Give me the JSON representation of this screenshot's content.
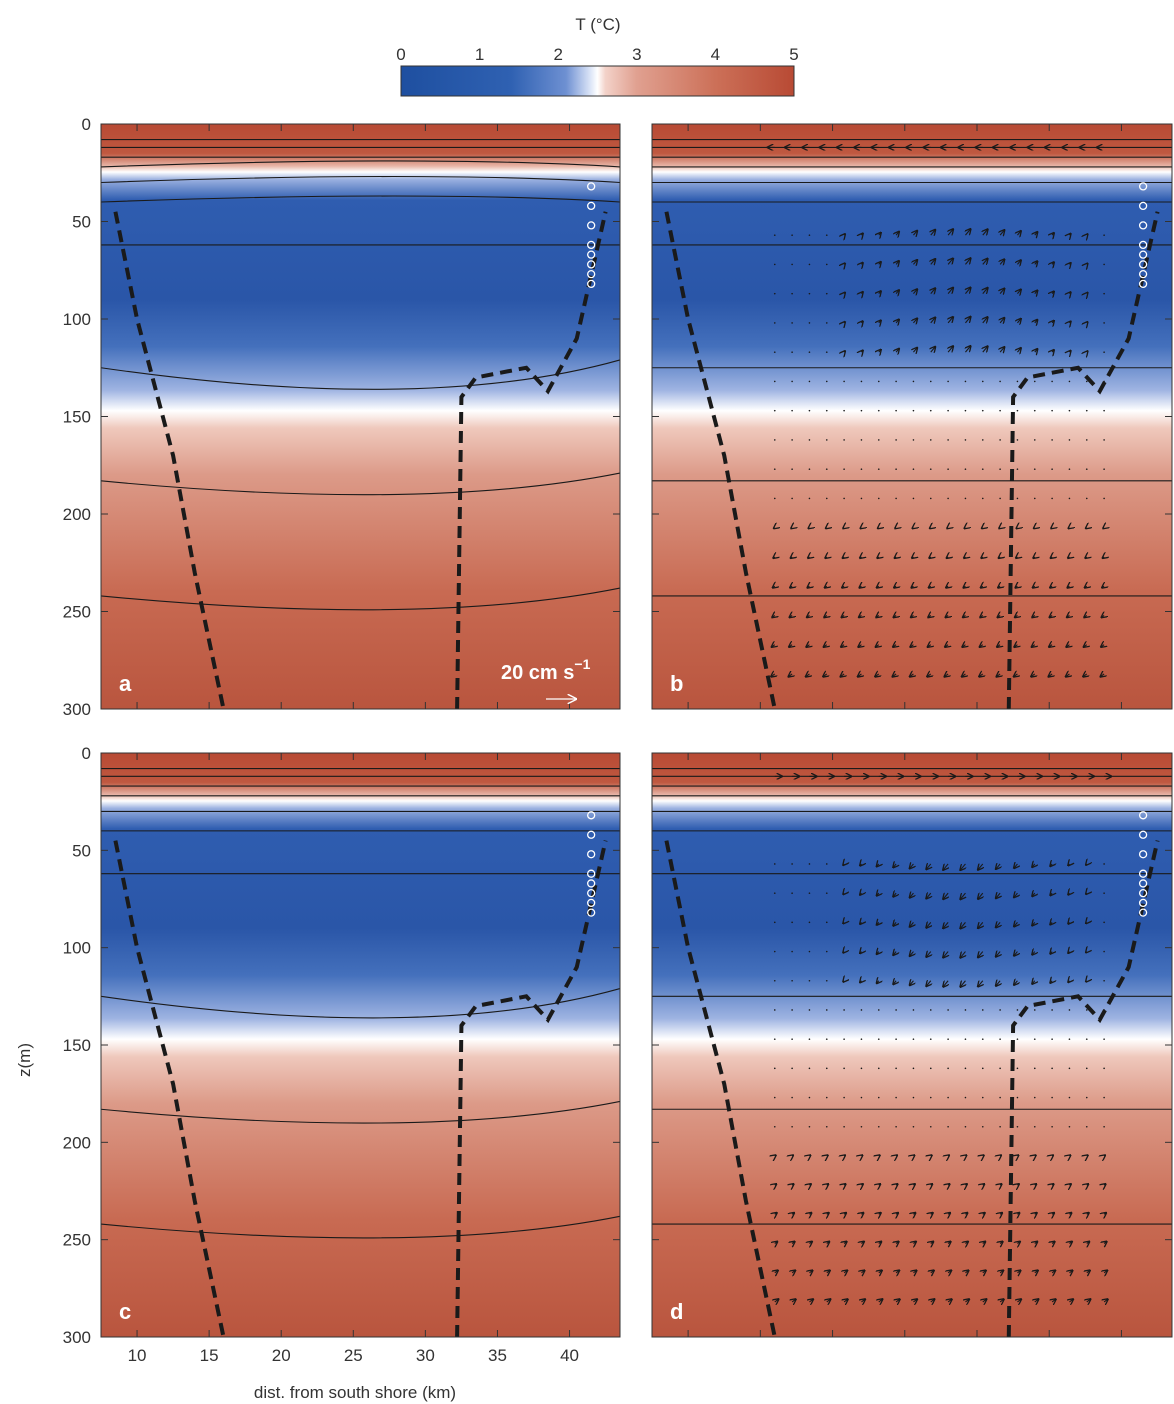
{
  "colorbar": {
    "title": "T (°C)",
    "ticks": [
      "0",
      "1",
      "2",
      "3",
      "4",
      "5"
    ],
    "range": [
      0,
      5
    ]
  },
  "axes": {
    "ylabel": "z(m)",
    "xlabel": "dist. from south shore (km)",
    "y_ticks": [
      "0",
      "50",
      "100",
      "150",
      "200",
      "250",
      "300"
    ],
    "x_ticks": [
      "10",
      "15",
      "20",
      "25",
      "30",
      "35",
      "40"
    ]
  },
  "velocity_scale_label": "20 cm s",
  "velocity_scale_exponent": "−1",
  "colors": {
    "cold": "#1e4fa0",
    "mid": "#ffffff",
    "warm": "#b84a34",
    "contour": "#1a1a1a",
    "boundary": "#1a1a1a"
  },
  "chart_data": [
    {
      "panel": "a",
      "type": "heatmap",
      "variable": "temperature (°C)",
      "xlim": [
        7.5,
        43.5
      ],
      "ylim": [
        300,
        0
      ],
      "layers_depth_m": {
        "warm_surface_to": 25,
        "cold_core_to": 148,
        "deep_warm_from": 155
      },
      "vectors": "none",
      "observation_column_km": 41.5,
      "boundary_left": [
        [
          8.5,
          45
        ],
        [
          10,
          100
        ],
        [
          12.5,
          170
        ],
        [
          14,
          230
        ],
        [
          16,
          300
        ]
      ],
      "boundary_right": [
        [
          32.2,
          300
        ],
        [
          32.5,
          140
        ],
        [
          33.5,
          130
        ],
        [
          37,
          125
        ],
        [
          38.5,
          137
        ],
        [
          40.5,
          110
        ],
        [
          42.5,
          45
        ]
      ]
    },
    {
      "panel": "b",
      "type": "heatmap",
      "variable": "temperature (°C)",
      "xlim": [
        7.5,
        43.5
      ],
      "ylim": [
        300,
        0
      ],
      "layers_depth_m": {
        "warm_surface_to": 25,
        "cold_core_to": 148,
        "deep_warm_from": 155
      },
      "vectors": "surface westward, mid-depth northeast, deep southwest",
      "observation_column_km": 41.5,
      "boundary_left": [
        [
          8.5,
          45
        ],
        [
          10,
          100
        ],
        [
          12.5,
          170
        ],
        [
          14,
          230
        ],
        [
          16,
          300
        ]
      ],
      "boundary_right": [
        [
          32.2,
          300
        ],
        [
          32.5,
          140
        ],
        [
          33.5,
          130
        ],
        [
          37,
          125
        ],
        [
          38.5,
          137
        ],
        [
          40.5,
          110
        ],
        [
          42.5,
          45
        ]
      ]
    },
    {
      "panel": "c",
      "type": "heatmap",
      "variable": "temperature (°C)",
      "xlim": [
        7.5,
        43.5
      ],
      "ylim": [
        300,
        0
      ],
      "layers_depth_m": {
        "warm_surface_to": 25,
        "cold_core_to": 148,
        "deep_warm_from": 155
      },
      "vectors": "none",
      "observation_column_km": 41.5,
      "boundary_left": [
        [
          8.5,
          45
        ],
        [
          10,
          100
        ],
        [
          12.5,
          170
        ],
        [
          14,
          230
        ],
        [
          16,
          300
        ]
      ],
      "boundary_right": [
        [
          32.2,
          300
        ],
        [
          32.5,
          140
        ],
        [
          33.5,
          130
        ],
        [
          37,
          125
        ],
        [
          38.5,
          137
        ],
        [
          40.5,
          110
        ],
        [
          42.5,
          45
        ]
      ]
    },
    {
      "panel": "d",
      "type": "heatmap",
      "variable": "temperature (°C)",
      "xlim": [
        7.5,
        43.5
      ],
      "ylim": [
        300,
        0
      ],
      "layers_depth_m": {
        "warm_surface_to": 25,
        "cold_core_to": 148,
        "deep_warm_from": 155
      },
      "vectors": "surface eastward, mid-depth southwest, deep southeast",
      "observation_column_km": 41.5,
      "boundary_left": [
        [
          8.5,
          45
        ],
        [
          10,
          100
        ],
        [
          12.5,
          170
        ],
        [
          14,
          230
        ],
        [
          16,
          300
        ]
      ],
      "boundary_right": [
        [
          32.2,
          300
        ],
        [
          32.5,
          140
        ],
        [
          33.5,
          130
        ],
        [
          37,
          125
        ],
        [
          38.5,
          137
        ],
        [
          40.5,
          110
        ],
        [
          42.5,
          45
        ]
      ]
    }
  ]
}
